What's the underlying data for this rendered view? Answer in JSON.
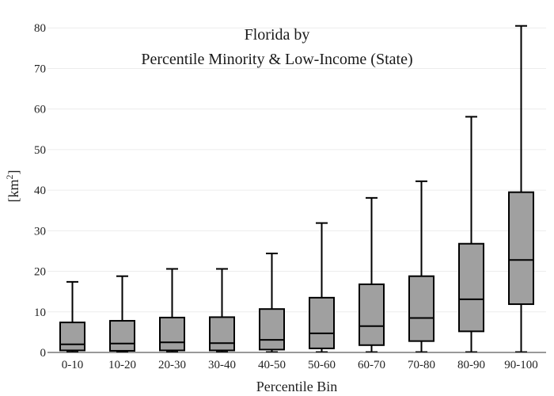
{
  "chart_data": {
    "type": "box",
    "title_line1": "Florida  by",
    "title_line2": "Percentile Minority & Low-Income (State)",
    "xlabel": "Percentile Bin",
    "ylabel_base": "[km",
    "ylabel_sup": "2",
    "ylabel_end": "]",
    "ylim": [
      0,
      82
    ],
    "yticks": [
      0,
      10,
      20,
      30,
      40,
      50,
      60,
      70,
      80
    ],
    "grid": true,
    "box_color": "#a0a0a0",
    "categories": [
      "0-10",
      "10-20",
      "20-30",
      "30-40",
      "40-50",
      "50-60",
      "60-70",
      "70-80",
      "80-90",
      "90-100"
    ],
    "boxes": [
      {
        "min": 0.1,
        "q1": 0.5,
        "median": 2.0,
        "q3": 7.4,
        "max": 17.4
      },
      {
        "min": 0.1,
        "q1": 0.4,
        "median": 2.2,
        "q3": 7.8,
        "max": 18.8
      },
      {
        "min": 0.1,
        "q1": 0.5,
        "median": 2.5,
        "q3": 8.6,
        "max": 20.6
      },
      {
        "min": 0.1,
        "q1": 0.5,
        "median": 2.3,
        "q3": 8.7,
        "max": 20.6
      },
      {
        "min": 0.1,
        "q1": 0.7,
        "median": 3.1,
        "q3": 10.7,
        "max": 24.4
      },
      {
        "min": 0.1,
        "q1": 1.0,
        "median": 4.7,
        "q3": 13.5,
        "max": 31.9
      },
      {
        "min": 0.1,
        "q1": 1.8,
        "median": 6.5,
        "q3": 16.8,
        "max": 38.1
      },
      {
        "min": 0.1,
        "q1": 2.8,
        "median": 8.5,
        "q3": 18.8,
        "max": 42.2
      },
      {
        "min": 0.1,
        "q1": 5.2,
        "median": 13.1,
        "q3": 26.8,
        "max": 58.1
      },
      {
        "min": 0.1,
        "q1": 11.9,
        "median": 22.8,
        "q3": 39.5,
        "max": 80.5
      }
    ]
  }
}
